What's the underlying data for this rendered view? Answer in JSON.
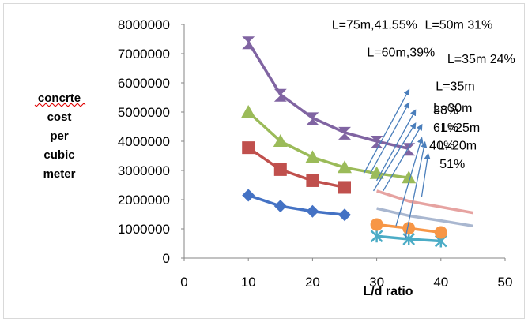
{
  "chart_data": {
    "type": "line",
    "title": "",
    "xlabel": "L/d ratio",
    "ylabel_lines": [
      "concrte",
      "cost",
      "per",
      "cubic",
      "meter"
    ],
    "xlim": [
      0,
      50
    ],
    "ylim": [
      0,
      8000000
    ],
    "xticks": [
      "0",
      "10",
      "20",
      "30",
      "40",
      "50"
    ],
    "yticks": [
      "0",
      "1000000",
      "2000000",
      "3000000",
      "4000000",
      "5000000",
      "6000000",
      "7000000",
      "8000000"
    ],
    "grid": false,
    "legend": "none",
    "series": [
      {
        "color": "#4472c4",
        "marker": "diamond",
        "x": [
          10,
          15,
          20,
          25
        ],
        "y": [
          2150000,
          1780000,
          1600000,
          1480000
        ]
      },
      {
        "color": "#c0504d",
        "marker": "square",
        "x": [
          10,
          15,
          20,
          25
        ],
        "y": [
          3780000,
          3030000,
          2650000,
          2420000
        ]
      },
      {
        "color": "#9bbb59",
        "marker": "triangle",
        "x": [
          10,
          15,
          20,
          25,
          30,
          35
        ],
        "y": [
          5000000,
          4000000,
          3450000,
          3100000,
          2900000,
          2750000
        ]
      },
      {
        "color": "#8064a2",
        "marker": "cross",
        "x": [
          10,
          15,
          20,
          25,
          30,
          35
        ],
        "y": [
          7400000,
          5600000,
          4800000,
          4300000,
          4000000,
          3750000
        ]
      },
      {
        "color": "#4bacc6",
        "marker": "x",
        "x": [
          30,
          35,
          40
        ],
        "y": [
          750000,
          650000,
          580000
        ]
      },
      {
        "color": "#f79646",
        "marker": "circle",
        "x": [
          30,
          35,
          40
        ],
        "y": [
          1150000,
          1020000,
          880000
        ]
      },
      {
        "color": "#a9b7d0",
        "marker": "none",
        "x": [
          30,
          35,
          40,
          45
        ],
        "y": [
          1700000,
          1450000,
          1280000,
          1100000
        ]
      },
      {
        "color": "#e6a3a1",
        "marker": "none",
        "x": [
          30,
          35,
          40,
          45
        ],
        "y": [
          2300000,
          1950000,
          1750000,
          1550000
        ]
      }
    ],
    "annotations": [
      {
        "text": "L=75m,41.55%",
        "x": 23,
        "y": 7850000
      },
      {
        "text": "L=50m 31%",
        "x": 37.5,
        "y": 7850000
      },
      {
        "text": "L=60m,39%",
        "x": 28.5,
        "y": 6900000
      },
      {
        "text": "L=35m 24%",
        "x": 41,
        "y": 6680000
      },
      {
        "text": "L=35m",
        "x": 39.2,
        "y": 5750000
      },
      {
        "text": "L=30m",
        "x": 38.8,
        "y": 5000000
      },
      {
        "text": "38%",
        "x": 38.8,
        "y": 4930000
      },
      {
        "text": "61%",
        "x": 38.8,
        "y": 4330000
      },
      {
        "text": "L=25m",
        "x": 40,
        "y": 4330000
      },
      {
        "text": "L=20m",
        "x": 39.5,
        "y": 3720000
      },
      {
        "text": "40%",
        "x": 38.2,
        "y": 3720000
      },
      {
        "text": "51%",
        "x": 39.8,
        "y": 3080000
      }
    ],
    "arrows": [
      {
        "from": [
          28,
          2900000
        ],
        "to": [
          35,
          5750000
        ]
      },
      {
        "from": [
          29,
          2900000
        ],
        "to": [
          35,
          5300000
        ]
      },
      {
        "from": [
          30,
          2650000
        ],
        "to": [
          36,
          5050000
        ]
      },
      {
        "from": [
          29.5,
          2300000
        ],
        "to": [
          36,
          4600000
        ]
      },
      {
        "from": [
          31,
          2300000
        ],
        "to": [
          37,
          4550000
        ]
      },
      {
        "from": [
          33,
          1100000
        ],
        "to": [
          37,
          4100000
        ]
      },
      {
        "from": [
          34.5,
          700000
        ],
        "to": [
          37.5,
          3950000
        ]
      },
      {
        "from": [
          37,
          2100000
        ],
        "to": [
          38,
          3550000
        ]
      }
    ]
  }
}
